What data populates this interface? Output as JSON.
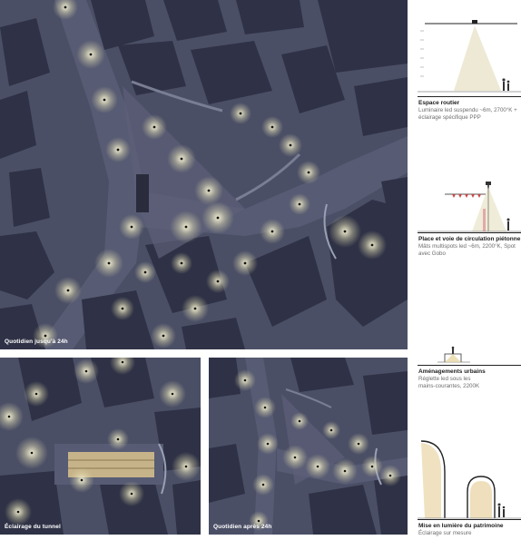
{
  "panels": {
    "main": {
      "caption": "Quotidien jusqu'à 24h"
    },
    "tunnel": {
      "caption": "Éclairage du tunnel"
    },
    "after": {
      "caption": "Quotidien après 24h"
    }
  },
  "legend": [
    {
      "title": "Espace routier",
      "description": "Luminaire led suspendu ~6m, 2700°K + éclairage spécifique PPP"
    },
    {
      "title": "Place et voie de circulation piétonne",
      "description": "Mâts multispots led ~6m, 2200°K, Spot avec Gobo"
    },
    {
      "title": "Aménagements urbains",
      "description": "Réglette led sous les mains-courantes, 2200K"
    },
    {
      "title": "Mise en lumière du patrimoine",
      "description": "Éclairage sur mesure"
    }
  ],
  "colors": {
    "ground": "#4b4f66",
    "building": "#2f3246",
    "glow": "#f4f0c8",
    "accent": "#d9c08a"
  }
}
